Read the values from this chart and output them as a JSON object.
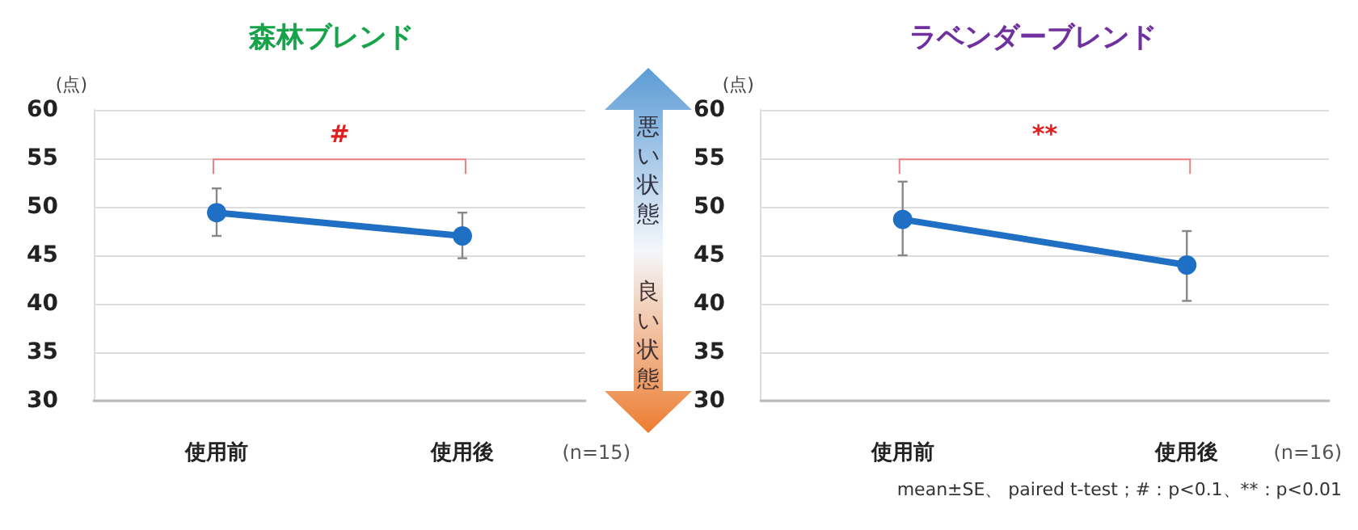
{
  "chart_data": [
    {
      "type": "line",
      "title": "森林ブレンド",
      "ylabel": "(点)",
      "categories": [
        "使用前",
        "使用後"
      ],
      "series": [
        {
          "color": "#1f6fc4",
          "values": [
            49.4,
            47.0
          ],
          "errors": [
            [
              47.0,
              51.9
            ],
            [
              44.7,
              49.4
            ]
          ]
        }
      ],
      "ylim": [
        30,
        60
      ],
      "yticks": [
        30,
        35,
        40,
        45,
        50,
        55,
        60
      ],
      "grid": "y",
      "marker": "circle",
      "line_style": "solid",
      "annotations": [
        "#",
        "(n=15)",
        "悪い状態",
        "良い状態"
      ]
    },
    {
      "type": "line",
      "title": "ラベンダーブレンド",
      "ylabel": "(点)",
      "categories": [
        "使用前",
        "使用後"
      ],
      "series": [
        {
          "color": "#1f6fc4",
          "values": [
            48.7,
            44.0
          ],
          "errors": [
            [
              45.0,
              52.6
            ],
            [
              40.3,
              47.5
            ]
          ]
        }
      ],
      "ylim": [
        30,
        60
      ],
      "yticks": [
        30,
        35,
        40,
        45,
        50,
        55,
        60
      ],
      "grid": "y",
      "marker": "circle",
      "line_style": "solid",
      "annotations": [
        "**",
        "(n=16)",
        "mean±SE、 paired t-test；#：p<0.1、**：p<0.01"
      ]
    }
  ]
}
